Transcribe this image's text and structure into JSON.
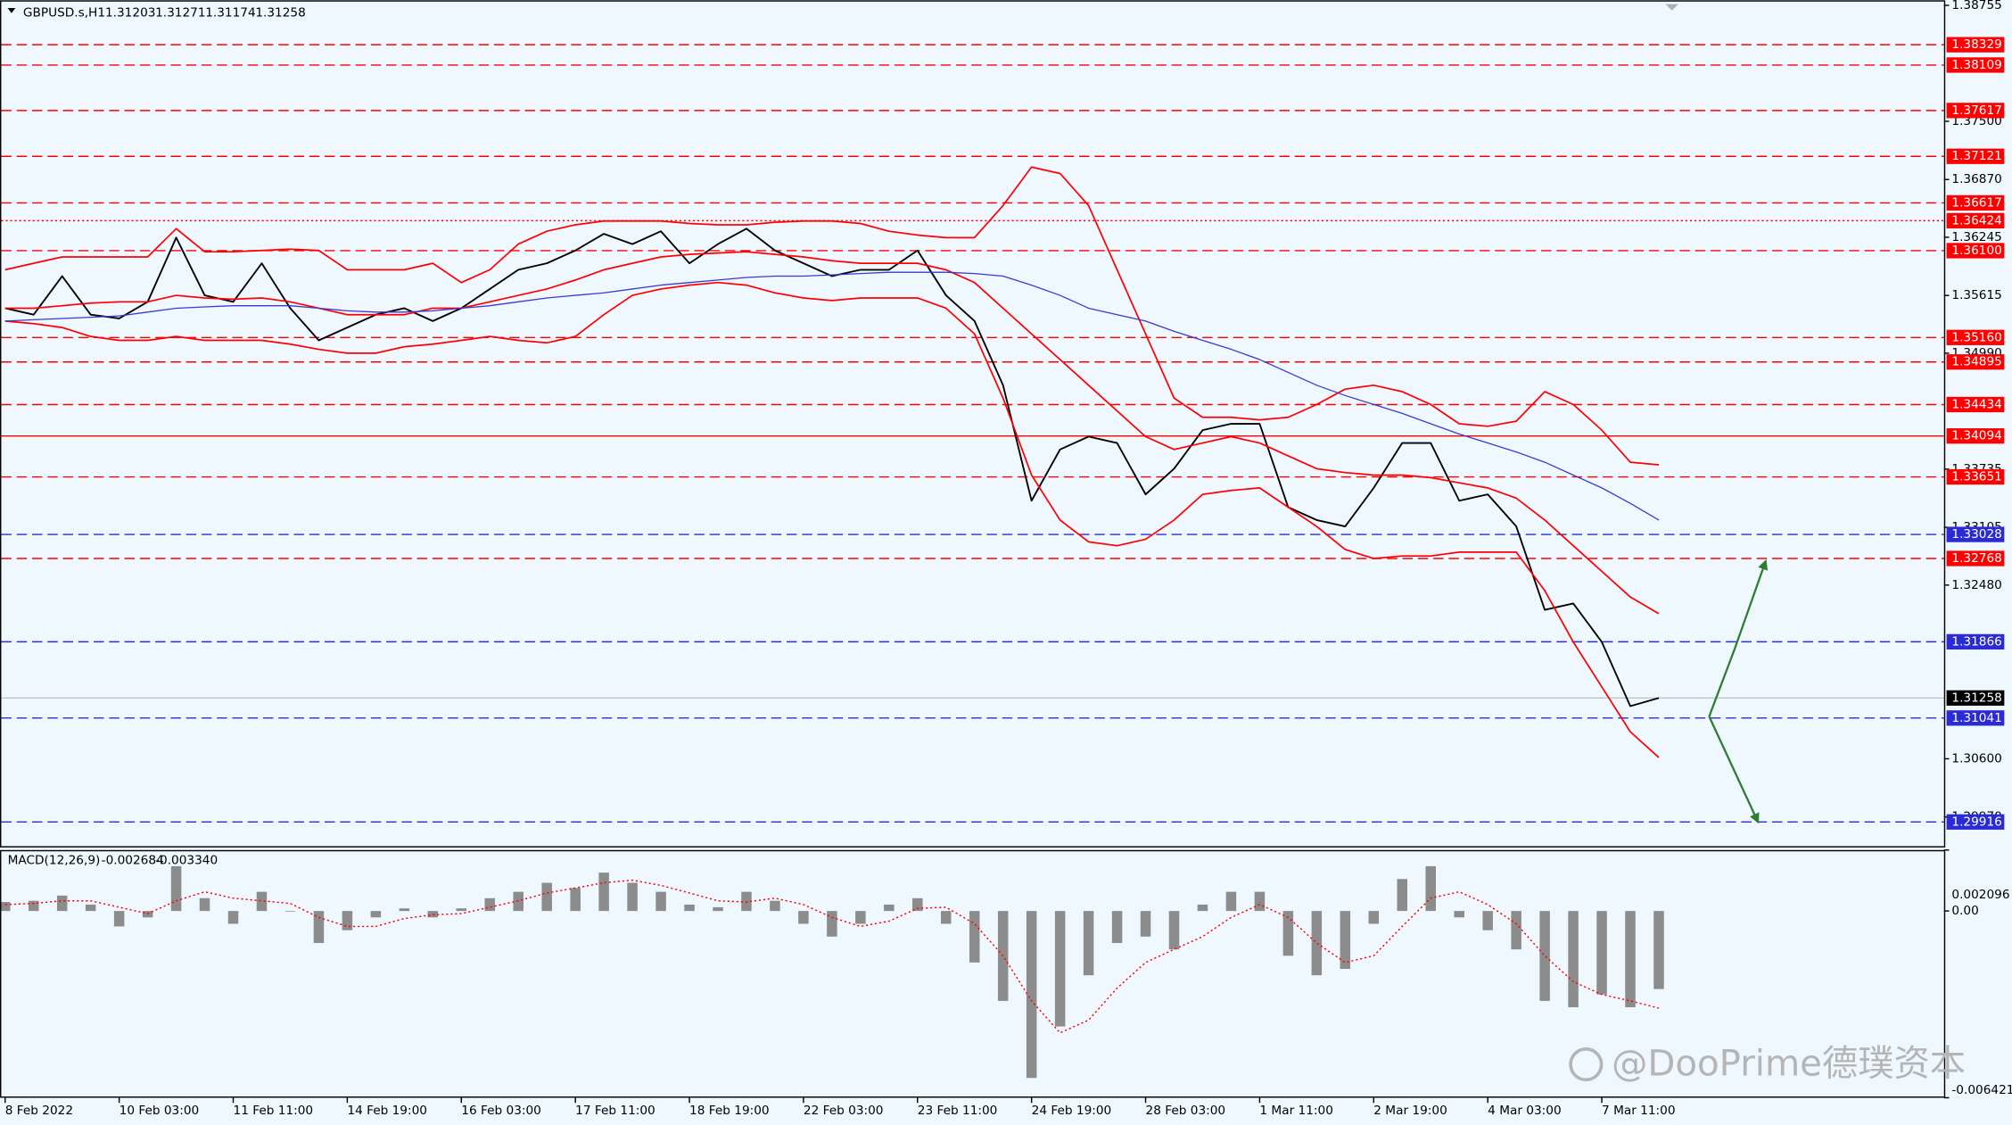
{
  "watermark": "@DooPrime德璞资本",
  "chart_data": [
    {
      "type": "line",
      "title": "GBPUSD.s,H1",
      "ohlc": [
        1.31203,
        1.31271,
        1.31174,
        1.31258
      ],
      "categories": [
        "8 Feb 2022",
        null,
        null,
        null,
        "10 Feb 03:00",
        null,
        null,
        null,
        "11 Feb 11:00",
        null,
        null,
        null,
        "14 Feb 19:00",
        null,
        null,
        null,
        "16 Feb 03:00",
        null,
        null,
        null,
        "17 Feb 11:00",
        null,
        null,
        null,
        "18 Feb 19:00",
        null,
        null,
        null,
        "22 Feb 03:00",
        null,
        null,
        null,
        "23 Feb 11:00",
        null,
        null,
        null,
        "24 Feb 19:00",
        null,
        null,
        null,
        "28 Feb 03:00",
        null,
        null,
        null,
        "1 Mar 11:00",
        null,
        null,
        null,
        "2 Mar 19:00",
        null,
        null,
        null,
        "4 Mar 03:00",
        null,
        null,
        null,
        "7 Mar 11:00",
        null,
        null
      ],
      "series": [
        {
          "color": "#000000",
          "width": 1.3,
          "values": [
            1.35477,
            1.35407,
            1.35824,
            1.35407,
            1.35366,
            1.35546,
            1.36241,
            1.35616,
            1.35546,
            1.35963,
            1.35477,
            1.35129,
            1.35268,
            1.35407,
            1.35477,
            1.35338,
            1.35477,
            1.35685,
            1.35893,
            1.35963,
            1.36102,
            1.36282,
            1.36171,
            1.3631,
            1.35963,
            1.36171,
            1.36338,
            1.36102,
            1.35963,
            1.35824,
            1.35893,
            1.35893,
            1.36102,
            1.35616,
            1.35338,
            1.34643,
            1.33393,
            1.33948,
            1.34087,
            1.34018,
            1.33462,
            1.3374,
            1.34157,
            1.34226,
            1.34226,
            1.33323,
            1.33184,
            1.33115,
            1.33532,
            1.34018,
            1.34018,
            1.33393,
            1.33462,
            1.33115,
            1.32212,
            1.32281,
            1.31864,
            1.3117,
            1.31258
          ]
        },
        {
          "color": "#ff0000",
          "width": 1.2,
          "values": [
            1.35893,
            1.35963,
            1.36032,
            1.36032,
            1.36032,
            1.36032,
            1.36338,
            1.36088,
            1.36088,
            1.36102,
            1.36116,
            1.36102,
            1.35893,
            1.35893,
            1.35893,
            1.35963,
            1.35755,
            1.35893,
            1.36171,
            1.3631,
            1.3638,
            1.36421,
            1.36421,
            1.36421,
            1.36394,
            1.3638,
            1.3638,
            1.36407,
            1.36421,
            1.36421,
            1.36394,
            1.3631,
            1.36269,
            1.36241,
            1.36241,
            1.36588,
            1.37005,
            1.36935,
            1.36588,
            1.35893,
            1.35199,
            1.34504,
            1.34296,
            1.34296,
            1.34268,
            1.34296,
            1.34435,
            1.34601,
            1.34643,
            1.34574,
            1.34435,
            1.34226,
            1.34199,
            1.34254,
            1.34574,
            1.34435,
            1.34157,
            1.3381,
            1.33782
          ]
        },
        {
          "color": "#ff0000",
          "width": 1.2,
          "values": [
            1.35477,
            1.35477,
            1.35504,
            1.35532,
            1.35546,
            1.35546,
            1.35616,
            1.35588,
            1.35574,
            1.35588,
            1.35546,
            1.35477,
            1.35407,
            1.35407,
            1.35407,
            1.35477,
            1.35477,
            1.35546,
            1.35616,
            1.35685,
            1.35782,
            1.35893,
            1.35963,
            1.36032,
            1.3606,
            1.36074,
            1.36088,
            1.3606,
            1.36032,
            1.35991,
            1.35963,
            1.35963,
            1.35963,
            1.35893,
            1.35755,
            1.35477,
            1.35199,
            1.34921,
            1.34643,
            1.34365,
            1.34087,
            1.33948,
            1.34018,
            1.34087,
            1.34018,
            1.33879,
            1.3374,
            1.33698,
            1.33671,
            1.33671,
            1.33643,
            1.33587,
            1.33532,
            1.33421,
            1.33184,
            1.32906,
            1.32629,
            1.32351,
            1.3217
          ]
        },
        {
          "color": "#ff0000",
          "width": 1.2,
          "values": [
            1.35338,
            1.3531,
            1.35268,
            1.35171,
            1.35129,
            1.35129,
            1.35171,
            1.35129,
            1.35129,
            1.35129,
            1.35088,
            1.35032,
            1.3499,
            1.3499,
            1.3506,
            1.35088,
            1.35129,
            1.35171,
            1.35129,
            1.35102,
            1.35171,
            1.35407,
            1.35616,
            1.35685,
            1.35727,
            1.35755,
            1.35727,
            1.35643,
            1.35588,
            1.3556,
            1.35588,
            1.35588,
            1.35588,
            1.35477,
            1.35199,
            1.34504,
            1.33671,
            1.33184,
            1.32948,
            1.32906,
            1.32976,
            1.33184,
            1.33462,
            1.33504,
            1.33532,
            1.33323,
            1.33115,
            1.32865,
            1.32768,
            1.32795,
            1.32795,
            1.32837,
            1.32837,
            1.32837,
            1.3242,
            1.31864,
            1.31378,
            1.30892,
            1.30614
          ]
        },
        {
          "color": "#3a3ad0",
          "width": 0.9,
          "values": [
            1.35338,
            1.35352,
            1.35366,
            1.35379,
            1.35393,
            1.35435,
            1.35477,
            1.35491,
            1.35504,
            1.35504,
            1.35504,
            1.35477,
            1.35449,
            1.35435,
            1.35435,
            1.35449,
            1.35477,
            1.35504,
            1.35546,
            1.35588,
            1.35616,
            1.35643,
            1.35685,
            1.35727,
            1.35755,
            1.35782,
            1.3581,
            1.35824,
            1.35824,
            1.35838,
            1.35852,
            1.35866,
            1.35866,
            1.35866,
            1.35852,
            1.35824,
            1.35727,
            1.35616,
            1.35477,
            1.35407,
            1.35338,
            1.35227,
            1.35129,
            1.35032,
            1.34921,
            1.34782,
            1.34643,
            1.34532,
            1.34435,
            1.34338,
            1.34226,
            1.34115,
            1.34018,
            1.33921,
            1.3381,
            1.33671,
            1.33532,
            1.33365,
            1.33184
          ]
        }
      ],
      "levels": [
        {
          "value": 1.38329,
          "color": "#ff0000",
          "style": "dashed"
        },
        {
          "value": 1.38109,
          "color": "#ff0000",
          "style": "dashed"
        },
        {
          "value": 1.37617,
          "color": "#ff0000",
          "style": "dashed"
        },
        {
          "value": 1.37121,
          "color": "#ff0000",
          "style": "dashed"
        },
        {
          "value": 1.36617,
          "color": "#ff0000",
          "style": "dashed"
        },
        {
          "value": 1.36424,
          "color": "#ff0000",
          "style": "dotted"
        },
        {
          "value": 1.361,
          "label": "1.36100",
          "color": "#ff0000",
          "style": "dashed"
        },
        {
          "value": 1.3516,
          "label": "1.35160",
          "color": "#ff0000",
          "style": "dashed"
        },
        {
          "value": 1.34895,
          "color": "#ff0000",
          "style": "dashed"
        },
        {
          "value": 1.34434,
          "color": "#ff0000",
          "style": "dashed"
        },
        {
          "value": 1.34094,
          "color": "#ff0000",
          "style": "solid"
        },
        {
          "value": 1.33651,
          "color": "#ff0000",
          "style": "dashed"
        },
        {
          "value": 1.33028,
          "color": "#2b2bd6",
          "style": "dashed"
        },
        {
          "value": 1.32768,
          "color": "#ff0000",
          "style": "dashed"
        },
        {
          "value": 1.31866,
          "color": "#2b2bd6",
          "style": "dashed"
        },
        {
          "value": 1.31041,
          "color": "#2b2bd6",
          "style": "dashed"
        },
        {
          "value": 1.29916,
          "color": "#2b2bd6",
          "style": "dashed"
        }
      ],
      "ylim": [
        1.2964,
        1.3881
      ],
      "yticks": [
        1.38755,
        {
          "value": 1.375,
          "label": "1.37500"
        },
        {
          "value": 1.3687,
          "label": "1.36870"
        },
        1.36245,
        1.35615,
        {
          "value": 1.3499,
          "label": "1.34990"
        },
        1.33735,
        1.33105,
        {
          "value": 1.3248,
          "label": "1.32480"
        },
        {
          "value": 1.306,
          "label": "1.30600"
        },
        {
          "value": 1.2997,
          "label": "1.29970"
        }
      ]
    },
    {
      "type": "bar",
      "title": "MACD(12,26,9)",
      "readout": [
        -0.002684,
        {
          "value": -0.00334,
          "label": "-0.003340"
        }
      ],
      "color": "#8c8c8c",
      "values": [
        0.00031,
        0.00035,
        0.00053,
        0.00022,
        -0.00053,
        -0.00022,
        0.00154,
        0.00044,
        -0.00044,
        0.00066,
        0,
        -0.0011,
        -0.00066,
        -0.00022,
        9e-05,
        -0.00022,
        9e-05,
        0.00044,
        0.00066,
        0.00097,
        0.00079,
        0.00132,
        0.00097,
        0.00066,
        0.00022,
        0.00013,
        0.00066,
        0.00035,
        -0.00044,
        -0.00088,
        -0.00044,
        0.00022,
        0.00044,
        -0.00044,
        -0.00177,
        -0.00309,
        -0.00574,
        -0.00397,
        -0.00221,
        -0.0011,
        -0.00088,
        -0.00132,
        0.00022,
        0.00066,
        0.00066,
        -0.00154,
        -0.00221,
        -0.00199,
        -0.00044,
        0.0011,
        0.00154,
        -0.00022,
        -0.00066,
        -0.00132,
        -0.00309,
        -0.00331,
        -0.00287,
        -0.00331,
        -0.002684
      ],
      "series": [
        {
          "color": "#ff0000",
          "style": "dotted",
          "width": 1,
          "values": [
            0.00022,
            0.00026,
            0.00035,
            0.00035,
            0.00013,
            -9e-05,
            0.00035,
            0.00066,
            0.00044,
            0.00035,
            0.00026,
            -0.00022,
            -0.00053,
            -0.00053,
            -0.00026,
            -0.00013,
            -9e-05,
            0.00013,
            0.00035,
            0.00062,
            0.00079,
            0.00097,
            0.00106,
            0.00088,
            0.00062,
            0.00035,
            0.00031,
            0.00044,
            0.00022,
            -0.00022,
            -0.00053,
            -0.00035,
            9e-05,
            0.00013,
            -0.00044,
            -0.00154,
            -0.00309,
            -0.00419,
            -0.00375,
            -0.00265,
            -0.00177,
            -0.00132,
            -0.00088,
            -0.00022,
            0.00022,
            -0.00022,
            -0.0011,
            -0.00177,
            -0.00154,
            -0.00053,
            0.00044,
            0.00066,
            0.00022,
            -0.00044,
            -0.00154,
            -0.00243,
            -0.00287,
            -0.00309,
            -0.00334
          ]
        }
      ],
      "ylim": [
        -0.006421,
        0.002096
      ],
      "yticks": [
        0.002096,
        {
          "value": 0,
          "label": "0.00"
        },
        -0.006421
      ]
    }
  ]
}
